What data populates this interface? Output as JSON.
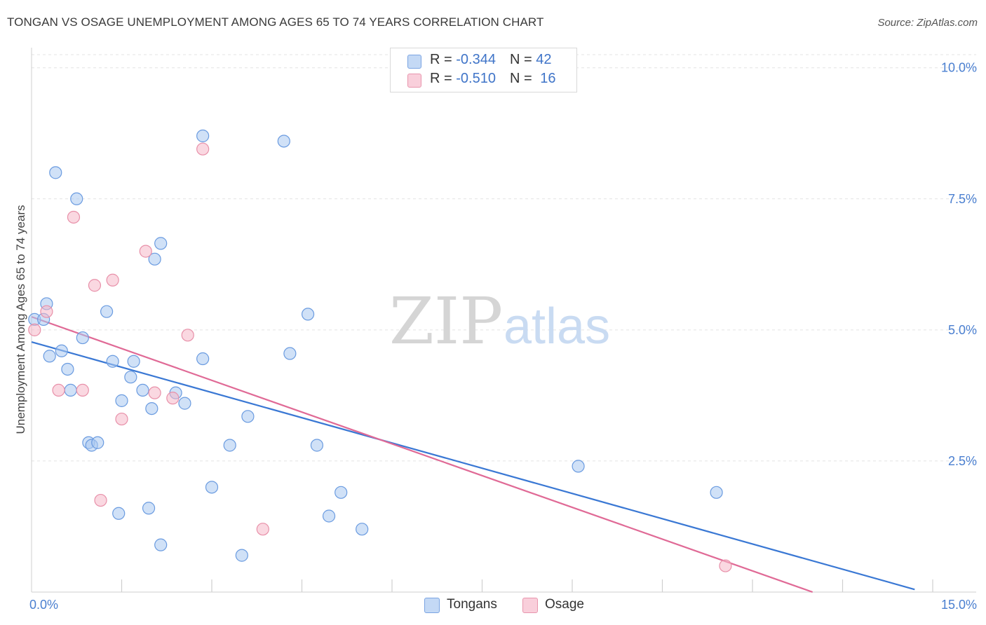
{
  "header": {
    "title": "TONGAN VS OSAGE UNEMPLOYMENT AMONG AGES 65 TO 74 YEARS CORRELATION CHART",
    "source": "Source: ZipAtlas.com"
  },
  "watermark": {
    "zip": "ZIP",
    "atlas": "atlas"
  },
  "legend": {
    "rows": [
      {
        "r_label": "R = ",
        "r_value": "-0.344",
        "n_label": "N = ",
        "n_value": "42",
        "color": "#a9c8f0"
      },
      {
        "r_label": "R = ",
        "r_value": "-0.510",
        "n_label": "N = ",
        "n_value": "16",
        "color": "#f5b8c9"
      }
    ]
  },
  "bottom_legend": [
    {
      "label": "Tongans",
      "color": "#a9c8f0"
    },
    {
      "label": "Osage",
      "color": "#f5b8c9"
    }
  ],
  "chart_data": {
    "type": "scatter",
    "title": "TONGAN VS OSAGE UNEMPLOYMENT AMONG AGES 65 TO 74 YEARS CORRELATION CHART",
    "xlabel": "",
    "ylabel": "Unemployment Among Ages 65 to 74 years",
    "xlim": [
      0,
      15
    ],
    "ylim": [
      0,
      10.25
    ],
    "x_tick_labels": [
      {
        "value": 0,
        "label": "0.0%"
      },
      {
        "value": 15,
        "label": "15.0%"
      }
    ],
    "y_tick_labels": [
      {
        "value": 2.5,
        "label": "2.5%"
      },
      {
        "value": 5.0,
        "label": "5.0%"
      },
      {
        "value": 7.5,
        "label": "7.5%"
      },
      {
        "value": 10.0,
        "label": "10.0%"
      }
    ],
    "grid": true,
    "series": [
      {
        "name": "Tongans",
        "color": "#a9c8f0",
        "stroke": "#6a9be0",
        "line_color": "#3a78d4",
        "trend": [
          [
            0,
            4.77
          ],
          [
            14.7,
            0.05
          ]
        ],
        "points": [
          [
            0.05,
            5.2
          ],
          [
            0.2,
            5.2
          ],
          [
            0.25,
            5.5
          ],
          [
            0.3,
            4.5
          ],
          [
            0.4,
            8.0
          ],
          [
            0.5,
            4.6
          ],
          [
            0.6,
            4.25
          ],
          [
            0.65,
            3.85
          ],
          [
            0.75,
            7.5
          ],
          [
            0.85,
            4.85
          ],
          [
            0.95,
            2.85
          ],
          [
            1.0,
            2.8
          ],
          [
            1.1,
            2.85
          ],
          [
            1.25,
            5.35
          ],
          [
            1.35,
            4.4
          ],
          [
            1.45,
            1.5
          ],
          [
            1.5,
            3.65
          ],
          [
            1.65,
            4.1
          ],
          [
            1.7,
            4.4
          ],
          [
            1.85,
            3.85
          ],
          [
            1.95,
            1.6
          ],
          [
            2.0,
            3.5
          ],
          [
            2.05,
            6.35
          ],
          [
            2.15,
            0.9
          ],
          [
            2.15,
            6.65
          ],
          [
            2.4,
            3.8
          ],
          [
            2.55,
            3.6
          ],
          [
            2.85,
            8.7
          ],
          [
            2.85,
            4.45
          ],
          [
            3.0,
            2.0
          ],
          [
            3.3,
            2.8
          ],
          [
            3.5,
            0.7
          ],
          [
            3.6,
            3.35
          ],
          [
            4.2,
            8.6
          ],
          [
            4.3,
            4.55
          ],
          [
            4.6,
            5.3
          ],
          [
            4.75,
            2.8
          ],
          [
            4.95,
            1.45
          ],
          [
            5.15,
            1.9
          ],
          [
            5.5,
            1.2
          ],
          [
            9.1,
            2.4
          ],
          [
            11.4,
            1.9
          ]
        ]
      },
      {
        "name": "Osage",
        "color": "#f5b8c9",
        "stroke": "#e890a9",
        "line_color": "#e06a96",
        "trend": [
          [
            0,
            5.25
          ],
          [
            13.0,
            0.0
          ]
        ],
        "points": [
          [
            0.05,
            5.0
          ],
          [
            0.25,
            5.35
          ],
          [
            0.45,
            3.85
          ],
          [
            0.7,
            7.15
          ],
          [
            0.85,
            3.85
          ],
          [
            1.05,
            5.85
          ],
          [
            1.15,
            1.75
          ],
          [
            1.35,
            5.95
          ],
          [
            1.5,
            3.3
          ],
          [
            1.9,
            6.5
          ],
          [
            2.05,
            3.8
          ],
          [
            2.35,
            3.7
          ],
          [
            2.6,
            4.9
          ],
          [
            2.85,
            8.45
          ],
          [
            3.85,
            1.2
          ],
          [
            11.55,
            0.5
          ]
        ]
      }
    ]
  }
}
